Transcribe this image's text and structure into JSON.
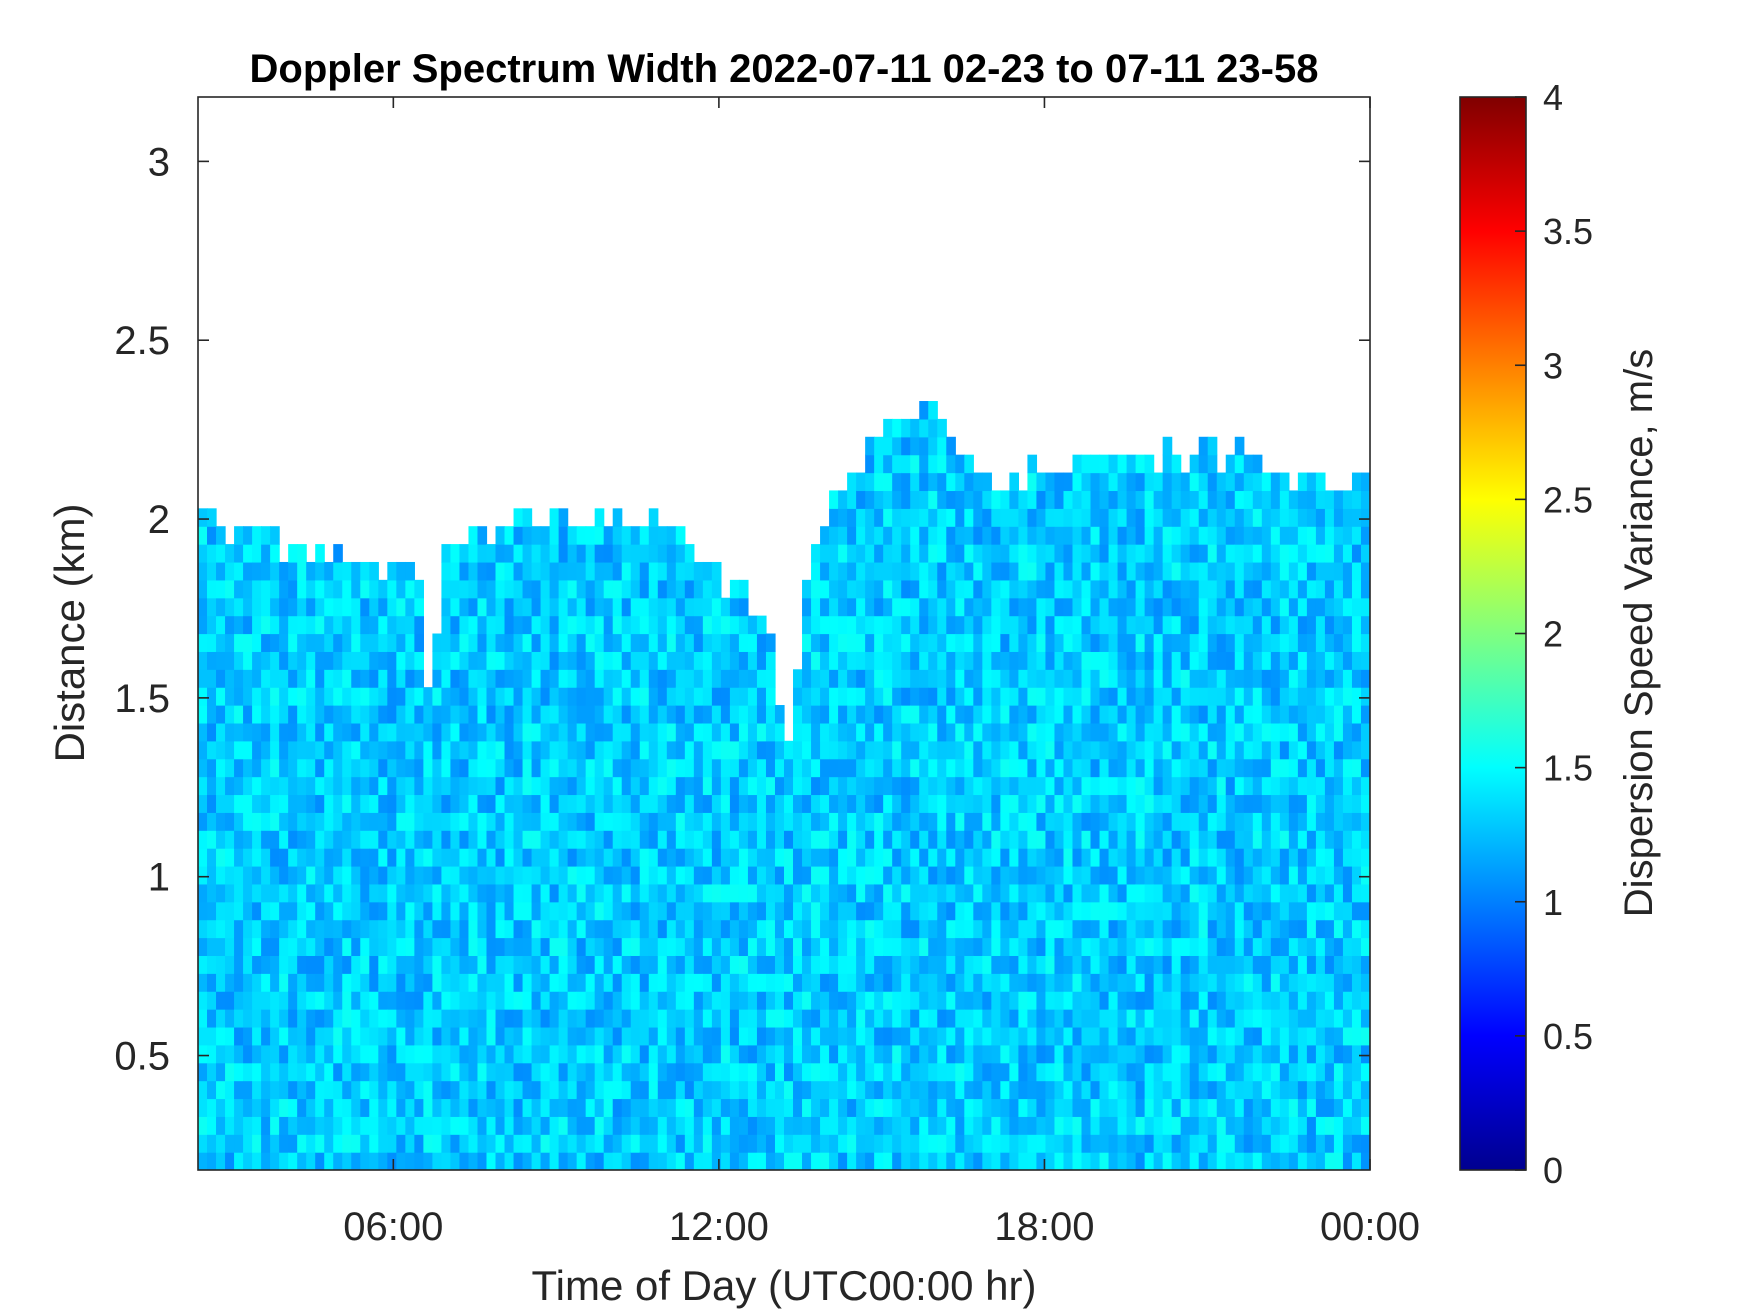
{
  "chart_data": {
    "type": "heatmap",
    "title": "Doppler Spectrum Width 2022-07-11 02-23 to 07-11 23-58",
    "xlabel": "Time of Day (UTC00:00 hr)",
    "ylabel": "Distance (km)",
    "xlim_hours": [
      2.4,
      24.0
    ],
    "ylim": [
      0.18,
      3.18
    ],
    "x_ticks": [
      {
        "value": 6,
        "label": "06:00"
      },
      {
        "value": 12,
        "label": "12:00"
      },
      {
        "value": 18,
        "label": "18:00"
      },
      {
        "value": 24,
        "label": "00:00"
      }
    ],
    "y_ticks": [
      {
        "value": 0.5,
        "label": "0.5"
      },
      {
        "value": 1.0,
        "label": "1"
      },
      {
        "value": 1.5,
        "label": "1.5"
      },
      {
        "value": 2.0,
        "label": "2"
      },
      {
        "value": 2.5,
        "label": "2.5"
      },
      {
        "value": 3.0,
        "label": "3"
      }
    ],
    "colorbar": {
      "label": "Dispersion Speed Variance, m/s",
      "range": [
        0,
        4
      ],
      "colormap": "jet",
      "ticks": [
        {
          "value": 0,
          "label": "0"
        },
        {
          "value": 0.5,
          "label": "0.5"
        },
        {
          "value": 1,
          "label": "1"
        },
        {
          "value": 1.5,
          "label": "1.5"
        },
        {
          "value": 2,
          "label": "2"
        },
        {
          "value": 2.5,
          "label": "2.5"
        },
        {
          "value": 3,
          "label": "3"
        },
        {
          "value": 3.5,
          "label": "3.5"
        },
        {
          "value": 4,
          "label": "4"
        }
      ]
    },
    "cloud_top_profile": {
      "hours": [
        2.4,
        3.0,
        4.0,
        5.0,
        6.0,
        6.5,
        6.7,
        6.9,
        7.2,
        8.0,
        9.0,
        10.0,
        11.0,
        12.0,
        12.6,
        13.0,
        13.2,
        13.4,
        13.7,
        14.0,
        15.0,
        16.0,
        17.0,
        18.0,
        19.0,
        20.0,
        21.0,
        22.0,
        23.0,
        24.0
      ],
      "top_km": [
        2.05,
        1.95,
        1.93,
        1.9,
        1.87,
        1.85,
        1.4,
        1.88,
        1.93,
        1.98,
        2.0,
        2.02,
        2.0,
        1.85,
        1.75,
        1.7,
        1.35,
        1.55,
        1.9,
        2.0,
        2.25,
        2.3,
        2.1,
        2.15,
        2.2,
        2.18,
        2.2,
        2.15,
        2.1,
        2.1
      ]
    },
    "typical_value": 1.3,
    "value_spread": 0.25
  }
}
